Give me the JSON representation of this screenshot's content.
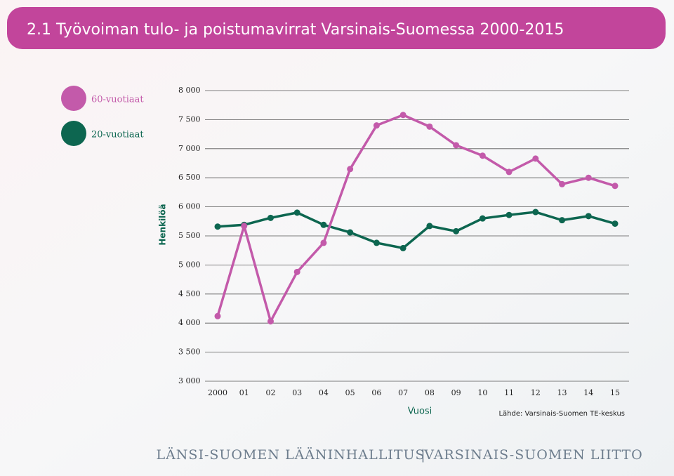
{
  "chart_data": {
    "type": "line",
    "title": "2.1 Työvoiman tulo- ja poistumavirrat Varsinais-Suomessa 2000-2015",
    "ylabel": "Henkilöä",
    "xlabel": "Vuosi",
    "source": "Lähde: Varsinais-Suomen TE-keskus",
    "categories": [
      "2000",
      "01",
      "02",
      "03",
      "04",
      "05",
      "06",
      "07",
      "08",
      "09",
      "10",
      "11",
      "12",
      "13",
      "14",
      "15"
    ],
    "series": [
      {
        "name": "60-vuotiaat",
        "color": "#c35aaa",
        "values": [
          4120,
          5670,
          4030,
          4880,
          5380,
          6650,
          7400,
          7580,
          7380,
          7060,
          6880,
          6600,
          6830,
          6390,
          6500,
          6360
        ]
      },
      {
        "name": "20-vuotiaat",
        "color": "#0d6650",
        "values": [
          5660,
          5690,
          5810,
          5900,
          5690,
          5560,
          5380,
          5290,
          5670,
          5580,
          5800,
          5860,
          5910,
          5770,
          5840,
          5710
        ]
      }
    ],
    "ylim": [
      3000,
      8000
    ],
    "yticks": [
      {
        "value": 3000,
        "label": "3 000"
      },
      {
        "value": 3500,
        "label": "3 500"
      },
      {
        "value": 4000,
        "label": "4 000"
      },
      {
        "value": 4500,
        "label": "4 500"
      },
      {
        "value": 5000,
        "label": "5 000"
      },
      {
        "value": 5500,
        "label": "5 500"
      },
      {
        "value": 6000,
        "label": "6 000"
      },
      {
        "value": 6500,
        "label": "6 500"
      },
      {
        "value": 7000,
        "label": "7 000"
      },
      {
        "value": 7500,
        "label": "7 500"
      },
      {
        "value": 8000,
        "label": "8 000"
      }
    ],
    "grid": true
  },
  "footer": {
    "left": "LÄNSI-SUOMEN LÄÄNINHALLITUS",
    "separator": "|",
    "right": "VARSINAIS-SUOMEN LIITTO"
  }
}
